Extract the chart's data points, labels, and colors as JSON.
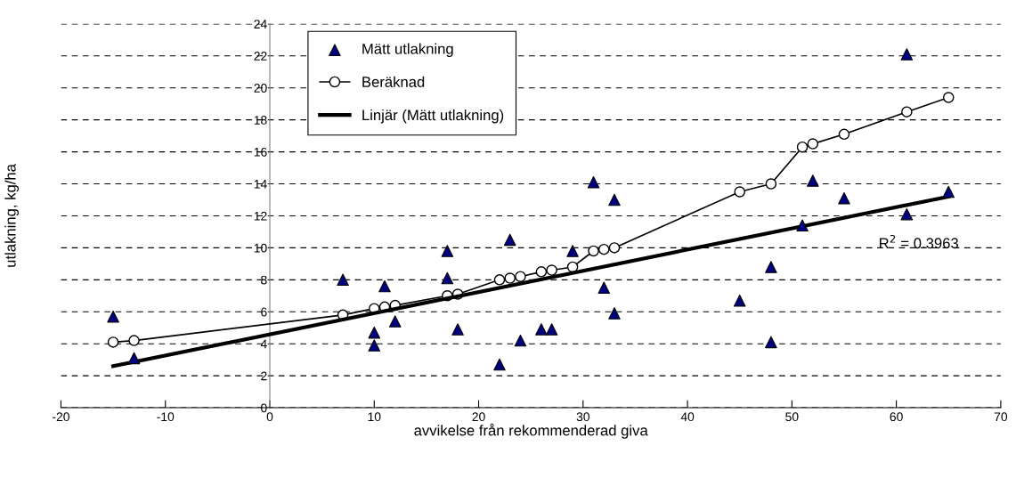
{
  "chart_data": {
    "type": "scatter",
    "xlabel": "avvikelse från rekommenderad giva",
    "ylabel": "utlakning, kg/ha",
    "xlim": [
      -20,
      70
    ],
    "ylim": [
      0,
      24
    ],
    "xticks": [
      -20,
      -10,
      0,
      10,
      20,
      30,
      40,
      50,
      60,
      70
    ],
    "yticks": [
      0,
      2,
      4,
      6,
      8,
      10,
      12,
      14,
      16,
      18,
      20,
      22,
      24
    ],
    "grid": "y",
    "legend": "top left",
    "annotations": [
      "R$^{2}$ = 0.3963"
    ],
    "series": [
      {
        "name": "Mätt utlakning",
        "marker": "triangle",
        "color": "#000080",
        "x": [
          -15,
          -13,
          7,
          10,
          10,
          11,
          12,
          17,
          17,
          18,
          22,
          23,
          24,
          26,
          27,
          29,
          31,
          32,
          33,
          33,
          45,
          48,
          48,
          51,
          52,
          55,
          61,
          61,
          65
        ],
        "values": [
          5.7,
          3.1,
          8.0,
          4.7,
          3.9,
          7.6,
          5.4,
          9.8,
          8.1,
          4.9,
          2.7,
          10.5,
          4.2,
          4.9,
          4.9,
          9.8,
          14.1,
          7.5,
          13.0,
          5.9,
          6.7,
          8.8,
          4.1,
          11.4,
          14.2,
          13.1,
          22.1,
          12.1,
          13.5
        ]
      },
      {
        "name": "Beräknad",
        "type": "line",
        "marker": "circle",
        "line_style": "solid",
        "color": "#000000",
        "x": [
          -15,
          -13,
          7,
          10,
          11,
          12,
          17,
          18,
          22,
          23,
          24,
          26,
          27,
          29,
          31,
          32,
          33,
          45,
          48,
          51,
          52,
          55,
          61,
          65
        ],
        "values": [
          4.1,
          4.2,
          5.8,
          6.2,
          6.3,
          6.4,
          7.0,
          7.1,
          8.0,
          8.1,
          8.2,
          8.5,
          8.6,
          8.8,
          9.8,
          9.9,
          10.0,
          13.5,
          14.0,
          16.3,
          16.5,
          17.1,
          18.5,
          19.4
        ]
      },
      {
        "name": "Linjär (Mätt utlakning)",
        "type": "line",
        "marker": "none",
        "line_style": "solid",
        "color": "#000000",
        "x": [
          -15,
          65
        ],
        "values": [
          2.6,
          13.2
        ]
      }
    ]
  }
}
